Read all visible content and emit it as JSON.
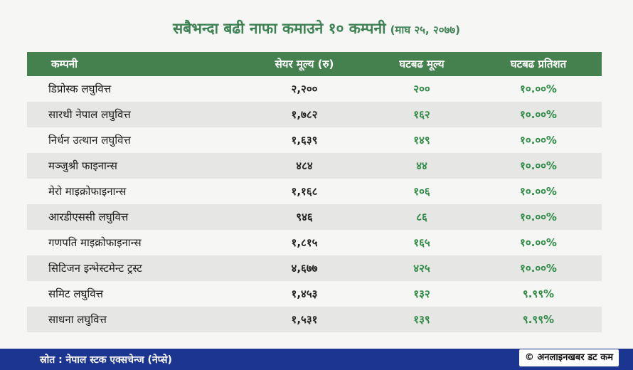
{
  "title": {
    "main": "सबैभन्दा बढी नाफा कमाउने १० कम्पनी",
    "sub": "(माघ २५, २०७७)"
  },
  "chart_data": {
    "type": "table",
    "columns": [
      "कम्पनी",
      "सेयर मूल्य (रु)",
      "घटबढ मूल्य",
      "घटबढ प्रतिशत"
    ],
    "rows": [
      {
        "company": "डिप्रोस्क लघुवित्त",
        "price": "२,२००",
        "change": "२००",
        "percent": "१०.००%"
      },
      {
        "company": "सारथी नेपाल लघुवित्त",
        "price": "१,७८२",
        "change": "१६२",
        "percent": "१०.००%"
      },
      {
        "company": "निर्धन उत्थान लघुवित्त",
        "price": "१,६३९",
        "change": "१४९",
        "percent": "१०.००%"
      },
      {
        "company": "मञ्जुश्री फाइनान्स",
        "price": "४८४",
        "change": "४४",
        "percent": "१०.००%"
      },
      {
        "company": "मेरो माइक्रोफाइनान्स",
        "price": "१,१६८",
        "change": "१०६",
        "percent": "१०.००%"
      },
      {
        "company": "आरडीएससी लघुवित्त",
        "price": "९४६",
        "change": "८६",
        "percent": "१०.००%"
      },
      {
        "company": "गणपति माइक्रोफाइनान्स",
        "price": "१,८१५",
        "change": "१६५",
        "percent": "१०.००%"
      },
      {
        "company": "सिटिजन इन्भेस्टमेन्ट ट्रस्ट",
        "price": "४,६७७",
        "change": "४२५",
        "percent": "१०.००%"
      },
      {
        "company": "समिट लघुवित्त",
        "price": "१,४५३",
        "change": "१३२",
        "percent": "९.९९%"
      },
      {
        "company": "साधना लघुवित्त",
        "price": "१,५३१",
        "change": "१३९",
        "percent": "९.९९%"
      }
    ]
  },
  "footer": {
    "source": "स्रोत : नेपाल स्टक एक्सचेन्ज (नेप्से)",
    "credit": "© अनलाइनखबर डट कम"
  },
  "colors": {
    "header_bg": "#45804f",
    "title": "#3e8254",
    "footer_bg": "#1c3591",
    "value_green": "#2e8a45"
  }
}
